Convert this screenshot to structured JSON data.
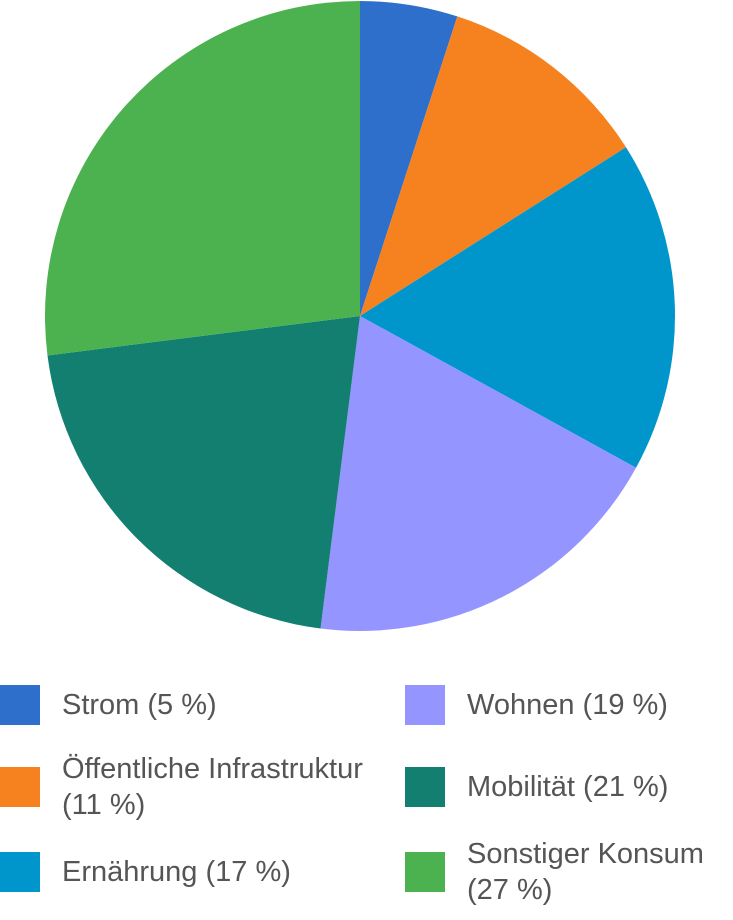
{
  "chart_data": {
    "type": "pie",
    "categories": [
      "Strom (5 %)",
      "Öffentliche Infrastruktur (11 %)",
      "Ernährung (17 %)",
      "Wohnen (19 %)",
      "Mobilität (21 %)",
      "Sonstiger Konsum (27 %)"
    ],
    "values": [
      5,
      11,
      17,
      19,
      21,
      27
    ],
    "colors": [
      "#2f6fcc",
      "#f5821f",
      "#0096cc",
      "#9595ff",
      "#127f70",
      "#4bb24f"
    ],
    "legend": "bottom"
  }
}
